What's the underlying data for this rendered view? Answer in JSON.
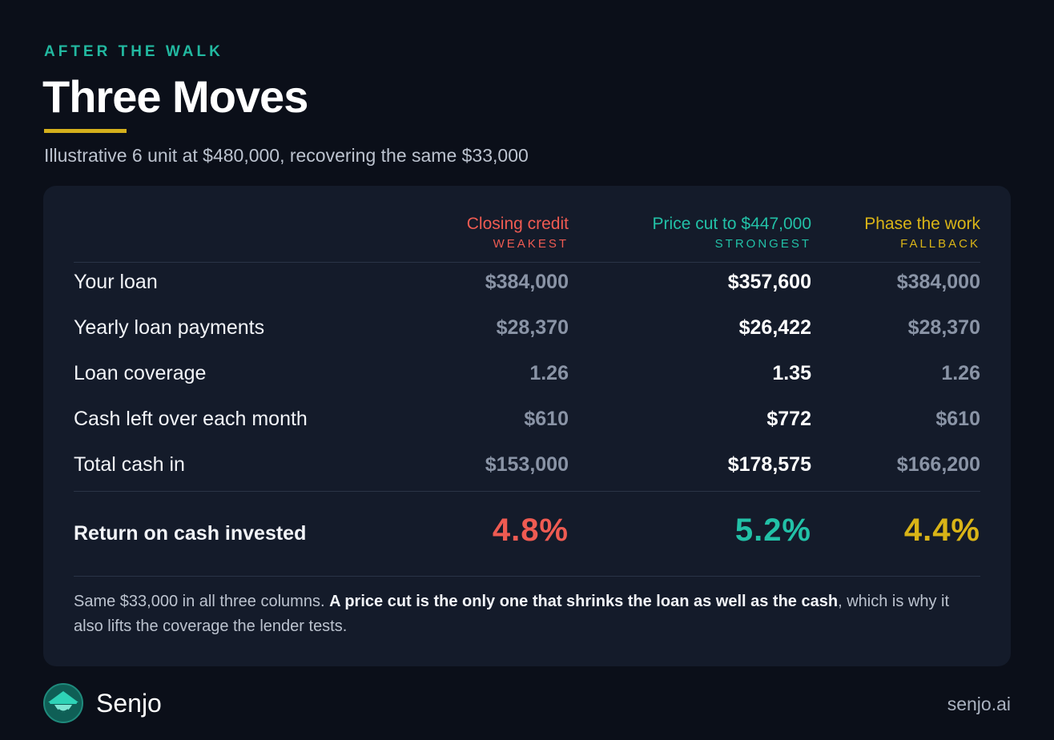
{
  "header": {
    "eyebrow": "AFTER THE WALK",
    "title": "Three Moves",
    "subtitle": "Illustrative 6 unit at $480,000, recovering the same $33,000"
  },
  "columns": [
    {
      "name": "Closing credit",
      "tag": "WEAKEST",
      "color": "#ef5b52"
    },
    {
      "name": "Price cut to $447,000",
      "tag": "STRONGEST",
      "color": "#22c1a7"
    },
    {
      "name": "Phase the work",
      "tag": "FALLBACK",
      "color": "#d9b417"
    }
  ],
  "rows": [
    {
      "label": "Your loan",
      "values": [
        "$384,000",
        "$357,600",
        "$384,000"
      ]
    },
    {
      "label": "Yearly loan payments",
      "values": [
        "$28,370",
        "$26,422",
        "$28,370"
      ]
    },
    {
      "label": "Loan coverage",
      "values": [
        "1.26",
        "1.35",
        "1.26"
      ]
    },
    {
      "label": "Cash left over each month",
      "values": [
        "$610",
        "$772",
        "$610"
      ]
    },
    {
      "label": "Total cash in",
      "values": [
        "$153,000",
        "$178,575",
        "$166,200"
      ]
    }
  ],
  "result": {
    "label": "Return on cash invested",
    "values": [
      "4.8%",
      "5.2%",
      "4.4%"
    ]
  },
  "note": {
    "lead": "Same $33,000 in all three columns. ",
    "bold": "A price cut is the only one that shrinks the loan as well as the cash",
    "tail": ", which is why it also lifts the coverage the lender tests."
  },
  "footer": {
    "brand": "Senjo",
    "site": "senjo.ai",
    "logo_icon": "hat-face-icon"
  }
}
